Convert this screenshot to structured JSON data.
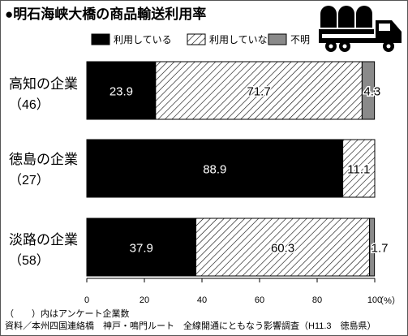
{
  "chart_data": {
    "type": "bar",
    "stacked": true,
    "orientation": "horizontal",
    "title": "●明石海峡大橋の商品輸送利用率",
    "legend_position": "top",
    "categories": [
      {
        "name": "高知の企業",
        "count": "（46）"
      },
      {
        "name": "徳島の企業",
        "count": "（27）"
      },
      {
        "name": "淡路の企業",
        "count": "（58）"
      }
    ],
    "series": [
      {
        "name": "利用している",
        "values": [
          23.9,
          88.9,
          37.9
        ],
        "labels": [
          "23.9",
          "88.9",
          "37.9"
        ],
        "fill": "#000000"
      },
      {
        "name": "利用していない",
        "values": [
          71.7,
          11.1,
          60.3
        ],
        "labels": [
          "71.7",
          "11.1",
          "60.3"
        ],
        "fill": "hatch"
      },
      {
        "name": "不明",
        "values": [
          4.3,
          0,
          1.7
        ],
        "labels": [
          "4.3",
          "",
          "1.7"
        ],
        "fill": "#8a8a8a"
      }
    ],
    "xlim": [
      0,
      100
    ],
    "xticks": [
      "0",
      "20",
      "40",
      "60",
      "80",
      "100"
    ],
    "xunit": "（%）",
    "grid": false
  },
  "notes": {
    "count_note": "（　　）内はアンケート企業数",
    "source": "資料／本州四国連絡橋　神戸・鳴門ルート　全線開通にともなう影響調査（H11.3　徳島県）"
  },
  "colors": {
    "background": "#ffffff",
    "border": "#555555",
    "text": "#000000"
  },
  "icons": {
    "truck": "truck-icon"
  }
}
